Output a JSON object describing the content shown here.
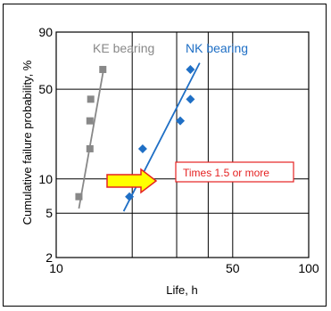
{
  "chart_data": {
    "type": "scatter",
    "xlabel": "Life, h",
    "ylabel": "Cumulative failure probability, %",
    "xscale": "log",
    "yscale": "weibull",
    "xlim": [
      10,
      100
    ],
    "ylim": [
      2,
      90
    ],
    "x_ticks": [
      10,
      50,
      100
    ],
    "x_gridlines": [
      10,
      20,
      30,
      40,
      50,
      100
    ],
    "y_ticks": [
      2,
      5,
      10,
      50,
      90
    ],
    "y_gridlines": [
      2,
      5,
      10,
      50,
      90
    ],
    "grid": true,
    "series": [
      {
        "name": "KE bearing",
        "color": "#888888",
        "marker": "square",
        "points": [
          {
            "x": 12.3,
            "y": 7
          },
          {
            "x": 13.6,
            "y": 18
          },
          {
            "x": 13.6,
            "y": 30
          },
          {
            "x": 13.7,
            "y": 43
          },
          {
            "x": 15.3,
            "y": 65
          }
        ],
        "fit_line": [
          {
            "x": 12.3,
            "y": 5.5
          },
          {
            "x": 15.4,
            "y": 65
          }
        ]
      },
      {
        "name": "NK bearing",
        "color": "#1f6fc5",
        "marker": "diamond",
        "points": [
          {
            "x": 19.5,
            "y": 7
          },
          {
            "x": 22,
            "y": 18
          },
          {
            "x": 31,
            "y": 30
          },
          {
            "x": 34,
            "y": 43
          },
          {
            "x": 34,
            "y": 65
          }
        ],
        "fit_line": [
          {
            "x": 18.5,
            "y": 5.2
          },
          {
            "x": 37,
            "y": 70
          }
        ]
      }
    ],
    "annotation": {
      "text": "Times 1.5 or more",
      "arrow": "right",
      "arrow_color": "#ffff00",
      "arrow_border": "#e52222",
      "box_border": "#e52222",
      "text_color": "#e52222"
    }
  }
}
